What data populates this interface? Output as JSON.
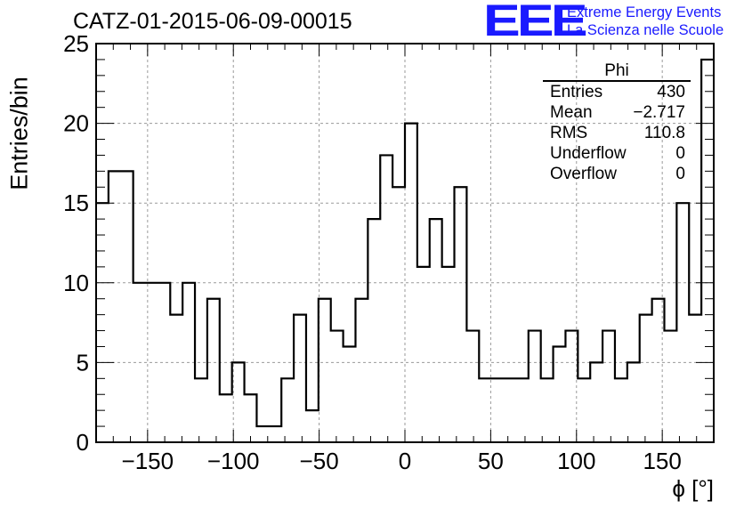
{
  "title": "CATZ-01-2015-06-09-00015",
  "logo": {
    "mark": "EEE",
    "line1": "Extreme Energy Events",
    "line2": "La Scienza nelle Scuole",
    "color": "#1a1aff"
  },
  "stats_box": {
    "title": "Phi",
    "rows": [
      {
        "label": "Entries",
        "value": "430"
      },
      {
        "label": "Mean",
        "value": "−2.717"
      },
      {
        "label": "RMS",
        "value": "110.8"
      },
      {
        "label": "Underflow",
        "value": "0"
      },
      {
        "label": "Overflow",
        "value": "0"
      }
    ]
  },
  "chart_data": {
    "type": "histogram",
    "xlabel": "ϕ [°]",
    "ylabel": "Entries/bin",
    "xlim": [
      -180,
      180
    ],
    "ylim": [
      0,
      25
    ],
    "xticks": [
      -150,
      -100,
      -50,
      0,
      50,
      100,
      150
    ],
    "xtick_labels": [
      "−150",
      "−100",
      "−50",
      "0",
      "50",
      "100",
      "150"
    ],
    "yticks": [
      0,
      5,
      10,
      15,
      20,
      25
    ],
    "grid": true,
    "bin_width": 7.2,
    "bin_low_edges": [
      -180,
      -172.8,
      -165.6,
      -158.4,
      -151.2,
      -144,
      -136.8,
      -129.6,
      -122.4,
      -115.2,
      -108,
      -100.8,
      -93.6,
      -86.4,
      -79.2,
      -72,
      -64.8,
      -57.6,
      -50.4,
      -43.2,
      -36,
      -28.8,
      -21.6,
      -14.4,
      -7.2,
      0,
      7.2,
      14.4,
      21.6,
      28.8,
      36,
      43.2,
      50.4,
      57.6,
      64.8,
      72,
      79.2,
      86.4,
      93.6,
      100.8,
      108,
      115.2,
      122.4,
      129.6,
      136.8,
      144,
      151.2,
      158.4,
      165.6,
      172.8
    ],
    "values": [
      15,
      17,
      17,
      10,
      10,
      10,
      8,
      10,
      4,
      9,
      3,
      5,
      3,
      1,
      1,
      4,
      8,
      2,
      9,
      7,
      6,
      9,
      14,
      18,
      16,
      20,
      11,
      14,
      11,
      16,
      7,
      4,
      4,
      4,
      4,
      7,
      4,
      6,
      7,
      4,
      5,
      7,
      4,
      5,
      8,
      9,
      7,
      15,
      8,
      24
    ],
    "line_color": "#000000"
  }
}
